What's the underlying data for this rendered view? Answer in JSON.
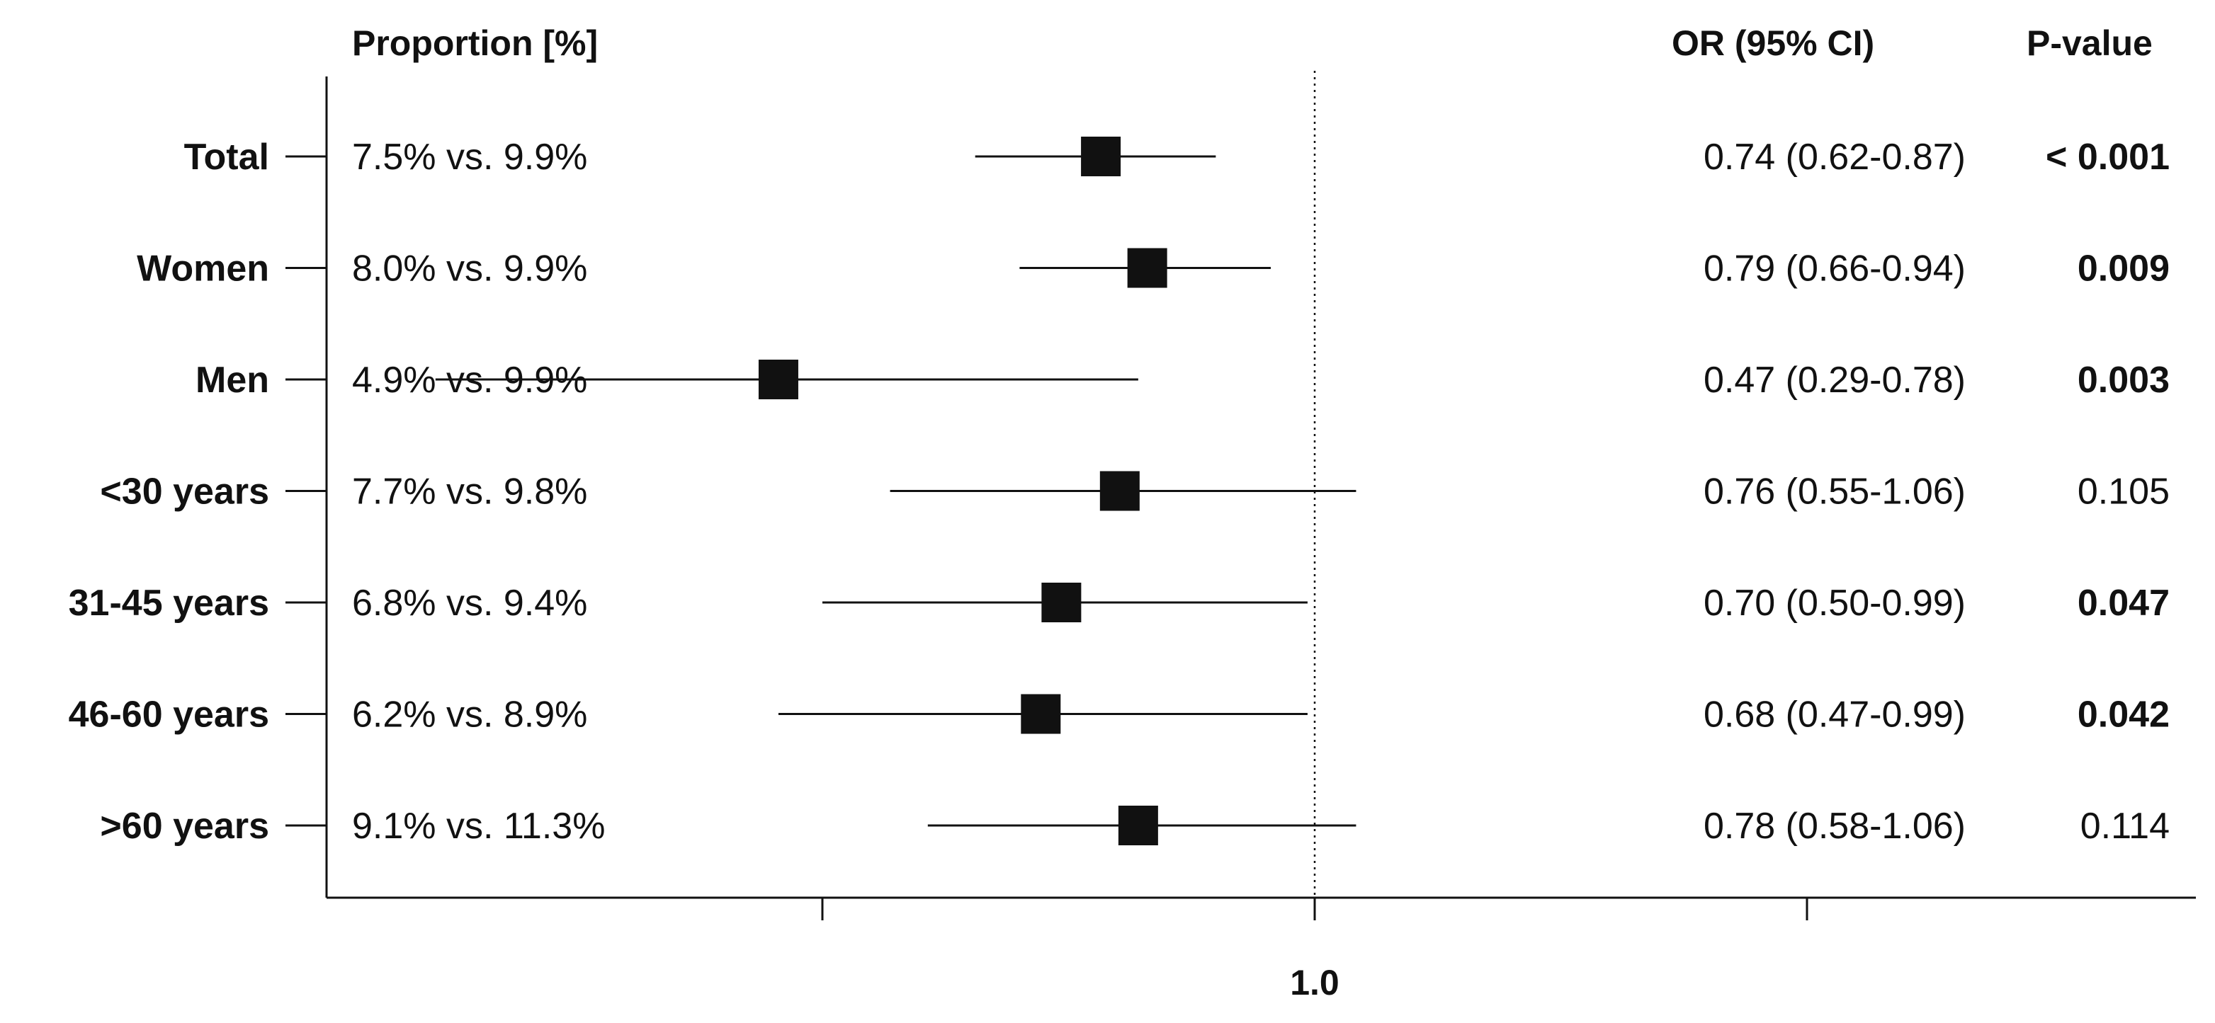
{
  "chart_data": {
    "type": "forest",
    "headers": {
      "proportion": "Proportion [%]",
      "or": "OR (95% CI)",
      "pvalue": "P-value"
    },
    "x_scale": "log",
    "reference_line": 1.0,
    "x_tick_labels": [
      "1.0"
    ],
    "xlim": [
      0.25,
      4.0
    ],
    "rows": [
      {
        "label": "Total",
        "proportion": "7.5% vs. 9.9%",
        "or_text": "0.74 (0.62-0.87)",
        "or": 0.74,
        "ci_low": 0.62,
        "ci_high": 0.87,
        "p": "< 0.001",
        "significant": true
      },
      {
        "label": "Women",
        "proportion": "8.0% vs. 9.9%",
        "or_text": "0.79 (0.66-0.94)",
        "or": 0.79,
        "ci_low": 0.66,
        "ci_high": 0.94,
        "p": "0.009",
        "significant": true
      },
      {
        "label": "Men",
        "proportion": "4.9% vs. 9.9%",
        "or_text": "0.47 (0.29-0.78)",
        "or": 0.47,
        "ci_low": 0.29,
        "ci_high": 0.78,
        "p": "0.003",
        "significant": true
      },
      {
        "label": "<30 years",
        "proportion": "7.7% vs. 9.8%",
        "or_text": "0.76 (0.55-1.06)",
        "or": 0.76,
        "ci_low": 0.55,
        "ci_high": 1.06,
        "p": "0.105",
        "significant": false
      },
      {
        "label": "31-45 years",
        "proportion": "6.8% vs. 9.4%",
        "or_text": "0.70 (0.50-0.99)",
        "or": 0.7,
        "ci_low": 0.5,
        "ci_high": 0.99,
        "p": "0.047",
        "significant": true
      },
      {
        "label": "46-60 years",
        "proportion": "6.2% vs. 8.9%",
        "or_text": "0.68 (0.47-0.99)",
        "or": 0.68,
        "ci_low": 0.47,
        "ci_high": 0.99,
        "p": "0.042",
        "significant": true
      },
      {
        "label": ">60 years",
        "proportion": "9.1% vs. 11.3%",
        "or_text": "0.78 (0.58-1.06)",
        "or": 0.78,
        "ci_low": 0.58,
        "ci_high": 1.06,
        "p": "0.114",
        "significant": false
      }
    ]
  }
}
